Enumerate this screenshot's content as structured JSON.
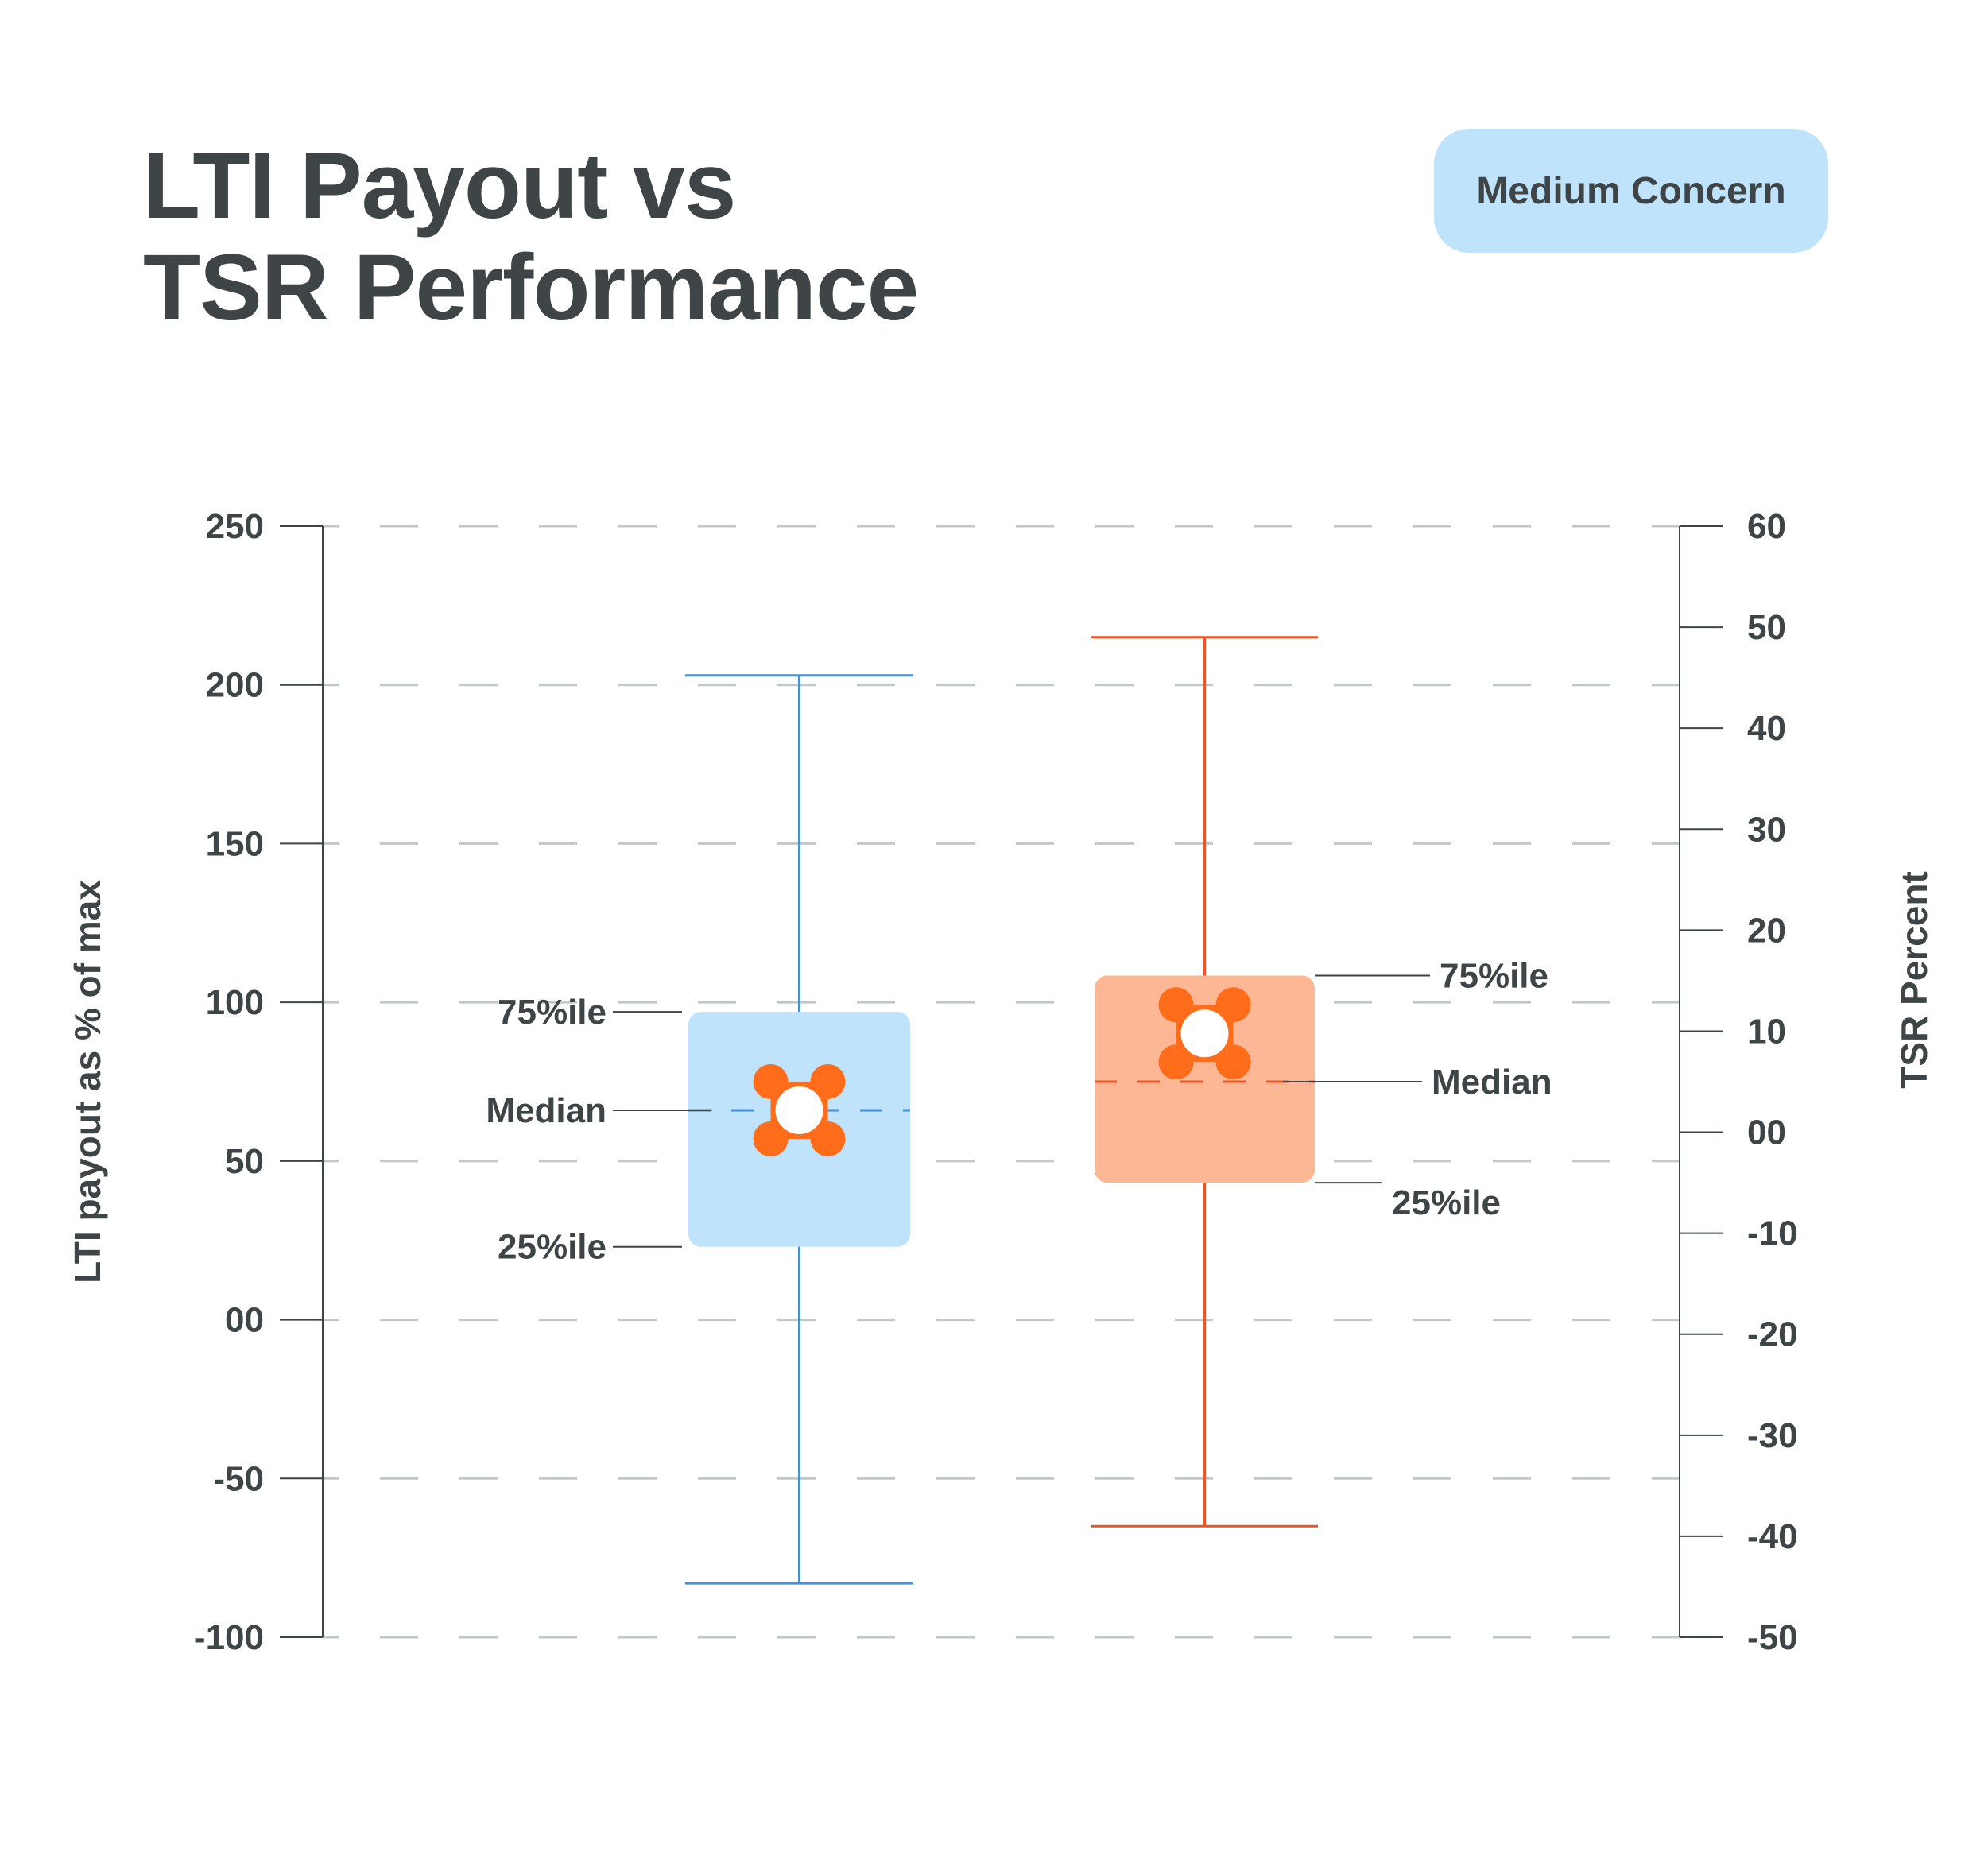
{
  "title": {
    "line1": "LTI Payout vs",
    "line2": "TSR Performance"
  },
  "badge": {
    "label": "Medium Concern",
    "color": "#bfe3fb"
  },
  "chart_data": {
    "type": "box",
    "grid": true,
    "left_axis": {
      "label": "LTI payout as % of max",
      "ylim": [
        -100,
        250
      ],
      "ticks": [
        250,
        200,
        150,
        100,
        50,
        0,
        -50,
        -100
      ],
      "tick_labels": [
        "250",
        "200",
        "150",
        "100",
        "50",
        "00",
        "-50",
        "-100"
      ]
    },
    "right_axis": {
      "label": "TSR Percent",
      "ylim": [
        -50,
        60
      ],
      "ticks": [
        60,
        50,
        40,
        30,
        20,
        10,
        0,
        -10,
        -20,
        -30,
        -40,
        -50
      ],
      "tick_labels": [
        "60",
        "50",
        "40",
        "30",
        "20",
        "10",
        "00",
        "-10",
        "-20",
        "-30",
        "-40",
        "-50"
      ]
    },
    "boxes": [
      {
        "axis": "left",
        "min": -83,
        "q1": 23,
        "median": 66,
        "q3": 97,
        "max": 203,
        "box_color": "#bfe3fb",
        "line_color": "#4a8fd0",
        "labels": {
          "q3": "75%ile",
          "median": "Median",
          "q1": "25%ile"
        },
        "label_side": "left"
      },
      {
        "axis": "right",
        "min": -39,
        "q1": -5,
        "median": 5,
        "q3": 15.5,
        "max": 49,
        "box_color": "#feb794",
        "line_color": "#ef5427",
        "labels": {
          "q3": "75%ile",
          "median": "Median",
          "q1": "25%ile"
        },
        "label_side": "right"
      }
    ],
    "marker_color": "#ff6c1a",
    "grid_color": "#c2c7c7",
    "axis_color": "#3f4446"
  }
}
